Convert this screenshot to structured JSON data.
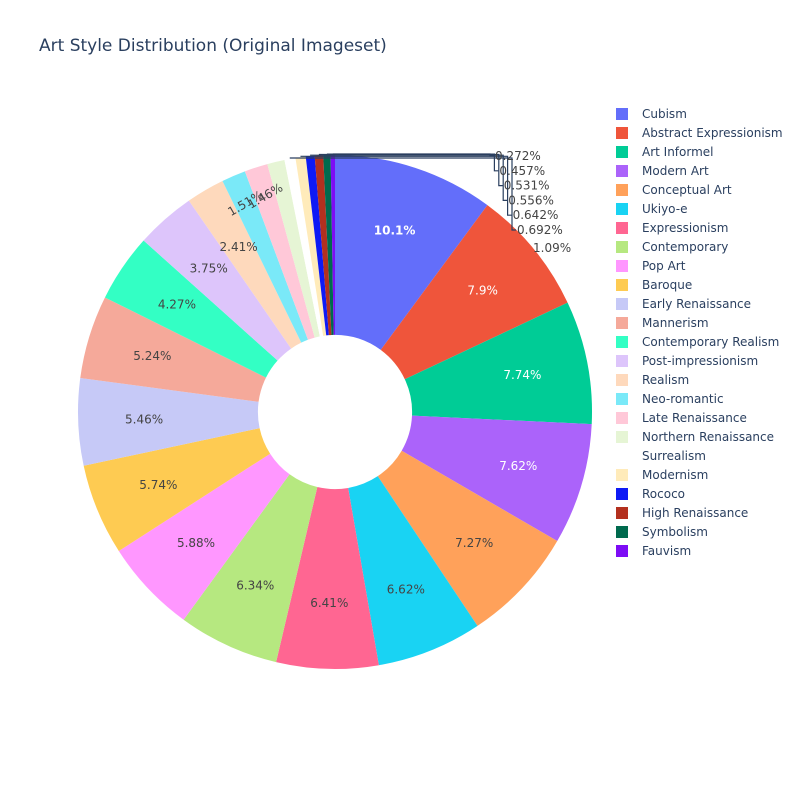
{
  "chart_data": {
    "type": "pie",
    "title": "Art Style Distribution (Original Imageset)",
    "hole": 0.3,
    "legend_position": "right",
    "slices": [
      {
        "label": "Cubism",
        "percent": 10.1,
        "text": "10.1%",
        "color": "#636efa",
        "bold": true,
        "label_pos": "inside"
      },
      {
        "label": "Abstract Expressionism",
        "percent": 7.9,
        "text": "7.9%",
        "color": "#EF553B",
        "label_pos": "inside"
      },
      {
        "label": "Art Informel",
        "percent": 7.74,
        "text": "7.74%",
        "color": "#00cc96",
        "label_pos": "inside"
      },
      {
        "label": "Modern Art",
        "percent": 7.62,
        "text": "7.62%",
        "color": "#ab63fa",
        "label_pos": "inside"
      },
      {
        "label": "Conceptual Art",
        "percent": 7.27,
        "text": "7.27%",
        "color": "#FFA15A",
        "label_pos": "inside"
      },
      {
        "label": "Ukiyo-e",
        "percent": 6.62,
        "text": "6.62%",
        "color": "#19d3f3",
        "label_pos": "inside"
      },
      {
        "label": "Expressionism",
        "percent": 6.41,
        "text": "6.41%",
        "color": "#FF6692",
        "label_pos": "inside"
      },
      {
        "label": "Contemporary",
        "percent": 6.34,
        "text": "6.34%",
        "color": "#B6E880",
        "label_pos": "inside"
      },
      {
        "label": "Pop Art",
        "percent": 5.88,
        "text": "5.88%",
        "color": "#FF97FF",
        "label_pos": "inside"
      },
      {
        "label": "Baroque",
        "percent": 5.74,
        "text": "5.74%",
        "color": "#FECB52",
        "label_pos": "inside"
      },
      {
        "label": "Early Renaissance",
        "percent": 5.46,
        "text": "5.46%",
        "color": "#c6c9f7",
        "label_pos": "inside"
      },
      {
        "label": "Mannerism",
        "percent": 5.24,
        "text": "5.24%",
        "color": "#f5a99a",
        "label_pos": "inside"
      },
      {
        "label": "Contemporary Realism",
        "percent": 4.27,
        "text": "4.27%",
        "color": "#33ffc4",
        "label_pos": "inside"
      },
      {
        "label": "Post-impressionism",
        "percent": 3.75,
        "text": "3.75%",
        "color": "#ddc5fb",
        "label_pos": "inside"
      },
      {
        "label": "Realism",
        "percent": 2.41,
        "text": "2.41%",
        "color": "#fed9bc",
        "label_pos": "inside"
      },
      {
        "label": "Neo-romantic",
        "percent": 1.51,
        "text": "1.51%",
        "color": "#7ae9f8",
        "label_pos": "inside"
      },
      {
        "label": "Late Renaissance",
        "percent": 1.46,
        "text": "1.46%",
        "color": "#ffc8d8",
        "label_pos": "inside"
      },
      {
        "label": "Northern Renaissance",
        "percent": 1.09,
        "text": "1.09%",
        "color": "#e6f5d5",
        "label_pos": "outside"
      },
      {
        "label": "Surrealism",
        "percent": 0.692,
        "text": "0.692%",
        "color": "#ffffff",
        "label_pos": "outside"
      },
      {
        "label": "Modernism",
        "percent": 0.642,
        "text": "0.642%",
        "color": "#ffebba",
        "label_pos": "outside"
      },
      {
        "label": "Rococo",
        "percent": 0.556,
        "text": "0.556%",
        "color": "#0e1af5",
        "label_pos": "outside"
      },
      {
        "label": "High Renaissance",
        "percent": 0.531,
        "text": "0.531%",
        "color": "#b3301f",
        "label_pos": "outside"
      },
      {
        "label": "Symbolism",
        "percent": 0.457,
        "text": "0.457%",
        "color": "#006a4e",
        "label_pos": "outside"
      },
      {
        "label": "Fauvism",
        "percent": 0.272,
        "text": "0.272%",
        "color": "#7d0cf5",
        "label_pos": "outside"
      }
    ]
  }
}
